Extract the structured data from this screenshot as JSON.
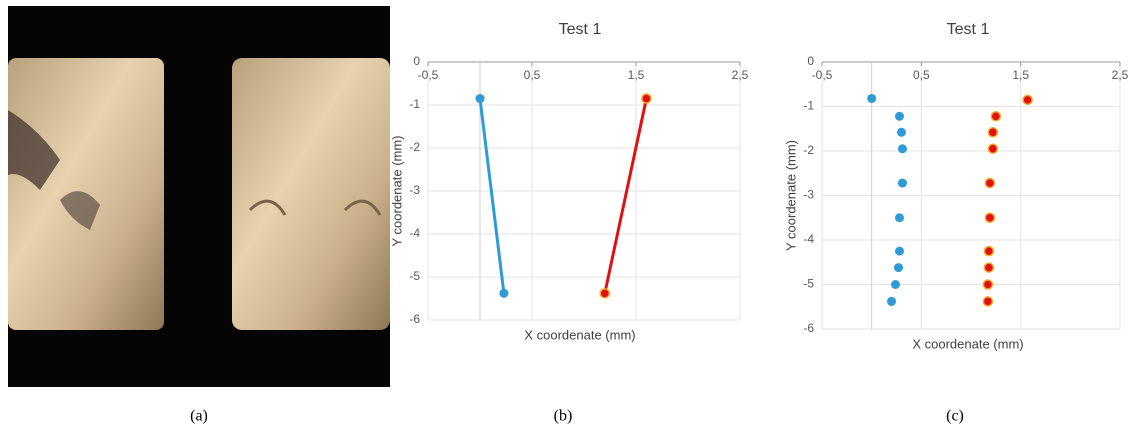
{
  "captions": [
    "(a)",
    "(b)",
    "(c)"
  ],
  "chart_data": [
    {
      "type": "line",
      "title": "Test 1",
      "x_label": "X coordenate (mm)",
      "y_label": "Y coordenate (mm)",
      "xlim": [
        -0.5,
        2.5
      ],
      "ylim": [
        -6,
        0
      ],
      "xticks": [
        {
          "value": -0.5,
          "label": "-0,5"
        },
        {
          "value": 0.5,
          "label": "0,5"
        },
        {
          "value": 1.5,
          "label": "1,5"
        },
        {
          "value": 2.5,
          "label": "2,5"
        }
      ],
      "yticks": [
        -6,
        -5,
        -4,
        -3,
        -2,
        -1,
        0
      ],
      "grid": true,
      "series": [
        {
          "color": "#2e9bd6",
          "x": [
            0,
            0.23
          ],
          "values": [
            -0.85,
            -5.38
          ]
        },
        {
          "color": "#e01010",
          "x": [
            1.6,
            1.2
          ],
          "values": [
            -0.85,
            -5.38
          ]
        }
      ]
    },
    {
      "type": "scatter",
      "title": "Test 1",
      "x_label": "X coordenate (mm)",
      "y_label": "Y coordenate (mm)",
      "xlim": [
        -0.5,
        2.5
      ],
      "ylim": [
        -6,
        0
      ],
      "xticks": [
        {
          "value": -0.5,
          "label": "-0,5"
        },
        {
          "value": 0.5,
          "label": "0,5"
        },
        {
          "value": 1.5,
          "label": "1,5"
        },
        {
          "value": 2.5,
          "label": "2,5"
        }
      ],
      "yticks": [
        -6,
        -5,
        -4,
        -3,
        -2,
        -1,
        0
      ],
      "grid": true,
      "series": [
        {
          "color": "#2e9bd6",
          "x": [
            0,
            0.28,
            0.3,
            0.31,
            0.31,
            0.28,
            0.28,
            0.27,
            0.24,
            0.2
          ],
          "values": [
            -0.82,
            -1.22,
            -1.58,
            -1.95,
            -2.72,
            -3.5,
            -4.25,
            -4.62,
            -5.0,
            -5.38
          ]
        },
        {
          "color": "#e01010",
          "x": [
            1.57,
            1.25,
            1.22,
            1.22,
            1.19,
            1.19,
            1.18,
            1.18,
            1.17,
            1.17
          ],
          "values": [
            -0.85,
            -1.22,
            -1.58,
            -1.95,
            -2.72,
            -3.5,
            -4.25,
            -4.62,
            -5.0,
            -5.38
          ]
        }
      ]
    }
  ]
}
